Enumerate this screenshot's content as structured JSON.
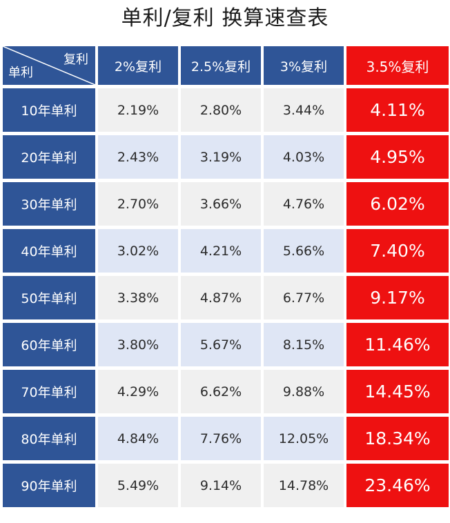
{
  "title": "单利/复利 换算速查表",
  "header": {
    "corner_top": "复利",
    "corner_bottom": "单利",
    "columns": [
      "2%复利",
      "2.5%复利",
      "3%复利",
      "3.5%复利"
    ]
  },
  "rows": [
    {
      "label": "10年单利",
      "values": [
        "2.19%",
        "2.80%",
        "3.44%",
        "4.11%"
      ]
    },
    {
      "label": "20年单利",
      "values": [
        "2.43%",
        "3.19%",
        "4.03%",
        "4.95%"
      ]
    },
    {
      "label": "30年单利",
      "values": [
        "2.70%",
        "3.66%",
        "4.76%",
        "6.02%"
      ]
    },
    {
      "label": "40年单利",
      "values": [
        "3.02%",
        "4.21%",
        "5.66%",
        "7.40%"
      ]
    },
    {
      "label": "50年单利",
      "values": [
        "3.38%",
        "4.87%",
        "6.77%",
        "9.17%"
      ]
    },
    {
      "label": "60年单利",
      "values": [
        "3.80%",
        "5.67%",
        "8.15%",
        "11.46%"
      ]
    },
    {
      "label": "70年单利",
      "values": [
        "4.29%",
        "6.62%",
        "9.88%",
        "14.45%"
      ]
    },
    {
      "label": "80年单利",
      "values": [
        "4.84%",
        "7.76%",
        "12.05%",
        "18.34%"
      ]
    },
    {
      "label": "90年单利",
      "values": [
        "5.49%",
        "9.14%",
        "14.78%",
        "23.46%"
      ]
    }
  ],
  "colors": {
    "header_blue": "#2f5597",
    "highlight_red": "#ee1111",
    "row_gray": "#f0f0f0",
    "row_lightblue": "#dfe6f5"
  }
}
